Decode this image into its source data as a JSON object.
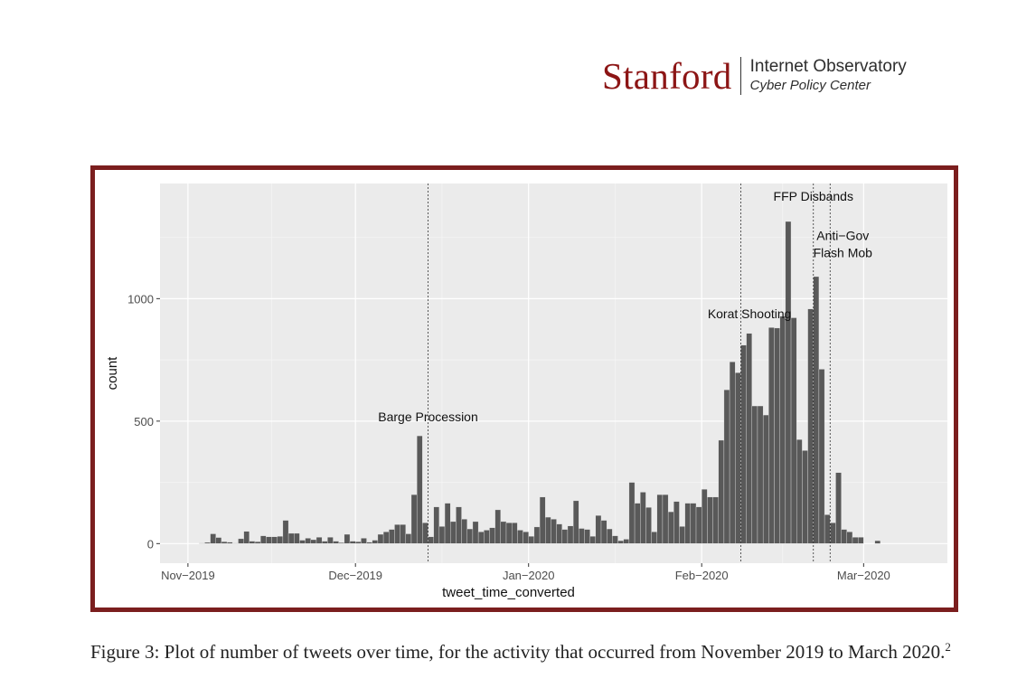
{
  "header": {
    "logo_word": "Stanford",
    "logo_line1": "Internet Observatory",
    "logo_line2": "Cyber Policy Center",
    "brand_color": "#8c1515"
  },
  "figure": {
    "frame_color": "#7b1e1e",
    "caption": "Figure 3: Plot of number of tweets over time, for the activity that occurred from November 2019 to March 2020.",
    "footnote": "2"
  },
  "chart_data": {
    "type": "bar",
    "xlabel": "tweet_time_converted",
    "ylabel": "count",
    "ylim": [
      -80,
      1470
    ],
    "yticks": [
      0,
      500,
      1000
    ],
    "xlim": [
      "2019-10-27",
      "2020-03-16"
    ],
    "xticks": [
      {
        "date": "2019-11-01",
        "label": "Nov−2019"
      },
      {
        "date": "2019-12-01",
        "label": "Dec−2019"
      },
      {
        "date": "2020-01-01",
        "label": "Jan−2020"
      },
      {
        "date": "2020-02-01",
        "label": "Feb−2020"
      },
      {
        "date": "2020-03-01",
        "label": "Mar−2020"
      }
    ],
    "grid": true,
    "panel_color": "#ebebeb",
    "bar_color": "#595959",
    "bins": {
      "start": "2019-11-03",
      "values": [
        2,
        5,
        40,
        25,
        8,
        6,
        2,
        20,
        50,
        10,
        8,
        32,
        28,
        28,
        30,
        95,
        42,
        42,
        14,
        22,
        16,
        26,
        10,
        26,
        10,
        4,
        38,
        10,
        8,
        22,
        6,
        14,
        38,
        48,
        58,
        78,
        78,
        40,
        200,
        440,
        85,
        28,
        150,
        70,
        165,
        90,
        150,
        100,
        60,
        90,
        48,
        55,
        65,
        138,
        90,
        85,
        85,
        55,
        48,
        30,
        68,
        190,
        108,
        100,
        80,
        58,
        72,
        175,
        62,
        58,
        30,
        115,
        95,
        60,
        32,
        12,
        18,
        250,
        165,
        210,
        148,
        48,
        200,
        200,
        130,
        172,
        70,
        165,
        165,
        150,
        222,
        190,
        190,
        422,
        628,
        742,
        698,
        810,
        858,
        562,
        562,
        525,
        882,
        880,
        928,
        1315,
        922,
        425,
        380,
        958,
        1090,
        712,
        118,
        85,
        290,
        58,
        48,
        26,
        26,
        0,
        0,
        12
      ]
    },
    "events": [
      {
        "label": "Barge Procession",
        "date": "2019-12-14",
        "label_y": 500
      },
      {
        "label": "Korat Shooting",
        "date": "2020-02-08",
        "label_y": 920
      },
      {
        "label": "FFP Disbands",
        "date": "2020-02-21",
        "label_y": 1400
      },
      {
        "label": "Anti−Gov",
        "date": "2020-02-24",
        "label_y": 1240
      },
      {
        "label": "Flash Mob",
        "date": "2020-02-24",
        "label_y": 1170
      }
    ]
  }
}
